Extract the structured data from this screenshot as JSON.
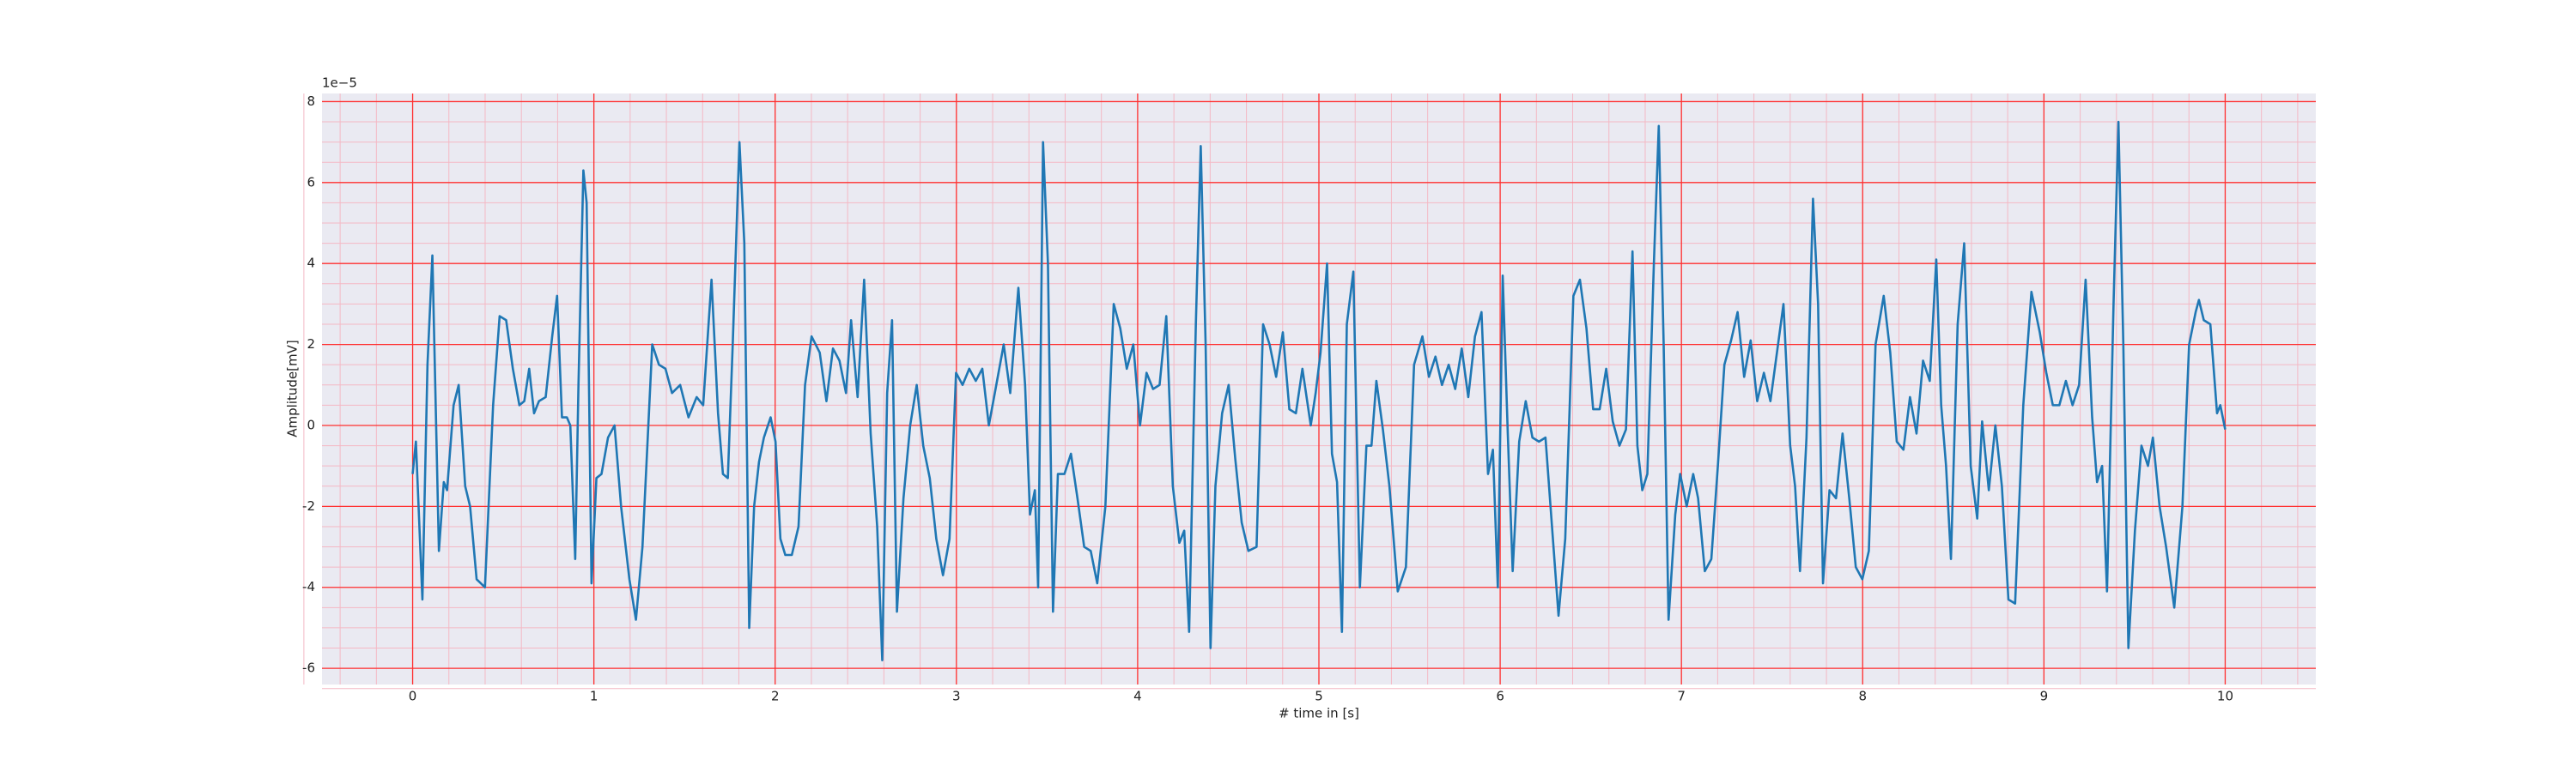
{
  "chart_data": {
    "type": "line",
    "xlabel": "# time in [s]",
    "ylabel": "Amplitude[mV]",
    "offset_label": "1e−5",
    "color": "#1f77b4",
    "grid": true,
    "minor_grid": true,
    "xlim": [
      -0.5,
      10.5
    ],
    "ylim": [
      -6.4,
      8.2
    ],
    "xticks": [
      0,
      1,
      2,
      3,
      4,
      5,
      6,
      7,
      8,
      9,
      10
    ],
    "yticks": [
      -6,
      -4,
      -2,
      0,
      2,
      4,
      6,
      8
    ],
    "x": [
      0,
      0.018,
      0.054,
      0.082,
      0.109,
      0.145,
      0.172,
      0.19,
      0.226,
      0.254,
      0.29,
      0.317,
      0.353,
      0.399,
      0.444,
      0.48,
      0.516,
      0.553,
      0.589,
      0.616,
      0.643,
      0.67,
      0.697,
      0.734,
      0.77,
      0.797,
      0.824,
      0.851,
      0.87,
      0.897,
      0.915,
      0.942,
      0.96,
      0.987,
      1.014,
      1.042,
      1.078,
      1.114,
      1.15,
      1.196,
      1.232,
      1.268,
      1.322,
      1.359,
      1.395,
      1.431,
      1.476,
      1.522,
      1.567,
      1.603,
      1.649,
      1.685,
      1.712,
      1.739,
      1.766,
      1.803,
      1.83,
      1.857,
      1.884,
      1.911,
      1.938,
      1.975,
      2.002,
      2.029,
      2.056,
      2.092,
      2.129,
      2.165,
      2.201,
      2.246,
      2.283,
      2.319,
      2.355,
      2.391,
      2.419,
      2.455,
      2.491,
      2.527,
      2.563,
      2.591,
      2.618,
      2.645,
      2.672,
      2.708,
      2.745,
      2.781,
      2.817,
      2.853,
      2.889,
      2.926,
      2.962,
      2.998,
      3.034,
      3.071,
      3.107,
      3.143,
      3.179,
      3.216,
      3.261,
      3.297,
      3.342,
      3.379,
      3.406,
      3.433,
      3.451,
      3.478,
      3.505,
      3.533,
      3.56,
      3.596,
      3.632,
      3.668,
      3.705,
      3.741,
      3.777,
      3.822,
      3.868,
      3.904,
      3.94,
      3.976,
      4.013,
      4.049,
      4.085,
      4.121,
      4.158,
      4.194,
      4.23,
      4.257,
      4.284,
      4.321,
      4.348,
      4.375,
      4.402,
      4.429,
      4.466,
      4.502,
      4.538,
      4.574,
      4.611,
      4.656,
      4.692,
      4.728,
      4.764,
      4.801,
      4.837,
      4.873,
      4.909,
      4.955,
      4.982,
      5.009,
      5.045,
      5.072,
      5.1,
      5.127,
      5.154,
      5.19,
      5.226,
      5.262,
      5.29,
      5.317,
      5.353,
      5.389,
      5.435,
      5.48,
      5.525,
      5.571,
      5.607,
      5.643,
      5.679,
      5.716,
      5.752,
      5.788,
      5.824,
      5.861,
      5.897,
      5.933,
      5.96,
      5.987,
      6.014,
      6.042,
      6.069,
      6.105,
      6.141,
      6.178,
      6.214,
      6.25,
      6.286,
      6.322,
      6.359,
      6.404,
      6.44,
      6.476,
      6.513,
      6.549,
      6.585,
      6.621,
      6.658,
      6.694,
      6.73,
      6.757,
      6.784,
      6.812,
      6.848,
      6.875,
      6.902,
      6.929,
      6.966,
      6.993,
      7.029,
      7.065,
      7.092,
      7.129,
      7.165,
      7.201,
      7.237,
      7.274,
      7.31,
      7.346,
      7.382,
      7.418,
      7.455,
      7.491,
      7.527,
      7.563,
      7.6,
      7.627,
      7.654,
      7.69,
      7.726,
      7.754,
      7.781,
      7.817,
      7.853,
      7.889,
      7.926,
      7.962,
      7.998,
      8.034,
      8.071,
      8.116,
      8.152,
      8.188,
      8.225,
      8.261,
      8.297,
      8.333,
      8.37,
      8.406,
      8.433,
      8.46,
      8.487,
      8.524,
      8.56,
      8.596,
      8.632,
      8.659,
      8.696,
      8.732,
      8.768,
      8.804,
      8.841,
      8.886,
      8.931,
      8.977,
      9.013,
      9.049,
      9.085,
      9.121,
      9.158,
      9.194,
      9.23,
      9.266,
      9.293,
      9.321,
      9.348,
      9.384,
      9.411,
      9.438,
      9.466,
      9.502,
      9.538,
      9.574,
      9.601,
      9.638,
      9.674,
      9.719,
      9.764,
      9.801,
      9.837,
      9.855,
      9.882,
      9.918,
      9.955,
      9.973,
      10.0
    ],
    "values": [
      -1.2,
      -0.4,
      -4.3,
      1.5,
      4.2,
      -3.1,
      -1.4,
      -1.6,
      0.5,
      1.0,
      -1.5,
      -2.0,
      -3.8,
      -4.0,
      0.5,
      2.7,
      2.6,
      1.4,
      0.5,
      0.6,
      1.4,
      0.3,
      0.6,
      0.7,
      2.2,
      3.2,
      0.2,
      0.2,
      0.0,
      -3.3,
      1.0,
      6.3,
      5.5,
      -3.9,
      -1.3,
      -1.2,
      -0.3,
      0.0,
      -2.0,
      -3.8,
      -4.8,
      -3.0,
      2.0,
      1.5,
      1.4,
      0.8,
      1.0,
      0.2,
      0.7,
      0.5,
      3.6,
      0.3,
      -1.2,
      -1.3,
      2.0,
      7.0,
      4.5,
      -5.0,
      -2.0,
      -0.9,
      -0.3,
      0.2,
      -0.4,
      -2.8,
      -3.2,
      -3.2,
      -2.5,
      1.0,
      2.2,
      1.8,
      0.6,
      1.9,
      1.6,
      0.8,
      2.6,
      0.7,
      3.6,
      -0.2,
      -2.5,
      -5.8,
      0.8,
      2.6,
      -4.6,
      -1.8,
      0.0,
      1.0,
      -0.5,
      -1.3,
      -2.8,
      -3.7,
      -2.8,
      1.3,
      1.0,
      1.4,
      1.1,
      1.4,
      0.0,
      0.9,
      2.0,
      0.8,
      3.4,
      1.0,
      -2.2,
      -1.6,
      -4.0,
      7.0,
      4.0,
      -4.6,
      -1.2,
      -1.2,
      -0.7,
      -1.8,
      -3.0,
      -3.1,
      -3.9,
      -2.0,
      3.0,
      2.4,
      1.4,
      2.0,
      0.0,
      1.3,
      0.9,
      1.0,
      2.7,
      -1.5,
      -2.9,
      -2.6,
      -5.1,
      2.5,
      6.9,
      2.0,
      -5.5,
      -1.5,
      0.3,
      1.0,
      -0.8,
      -2.4,
      -3.1,
      -3.0,
      2.5,
      2.0,
      1.2,
      2.3,
      0.4,
      0.3,
      1.4,
      0.0,
      0.8,
      1.8,
      4.0,
      -0.7,
      -1.4,
      -5.1,
      2.5,
      3.8,
      -4.0,
      -0.5,
      -0.5,
      1.1,
      -0.1,
      -1.5,
      -4.1,
      -3.5,
      1.5,
      2.2,
      1.2,
      1.7,
      1.0,
      1.5,
      0.9,
      1.9,
      0.7,
      2.2,
      2.8,
      -1.2,
      -0.6,
      -4.0,
      3.7,
      -0.2,
      -3.6,
      -0.4,
      0.6,
      -0.3,
      -0.4,
      -0.3,
      -2.5,
      -4.7,
      -2.8,
      3.2,
      3.6,
      2.4,
      0.4,
      0.4,
      1.4,
      0.1,
      -0.5,
      -0.1,
      4.3,
      -0.5,
      -1.6,
      -1.2,
      4.0,
      7.4,
      2.0,
      -4.8,
      -2.2,
      -1.2,
      -2.0,
      -1.2,
      -1.8,
      -3.6,
      -3.3,
      -1.0,
      1.5,
      2.1,
      2.8,
      1.2,
      2.1,
      0.6,
      1.3,
      0.6,
      1.8,
      3.0,
      -0.5,
      -1.5,
      -3.6,
      -0.3,
      5.6,
      3.0,
      -3.9,
      -1.6,
      -1.8,
      -0.2,
      -1.8,
      -3.5,
      -3.8,
      -3.1,
      2.0,
      3.2,
      1.8,
      -0.4,
      -0.6,
      0.7,
      -0.2,
      1.6,
      1.1,
      4.1,
      0.5,
      -1.0,
      -3.3,
      2.5,
      4.5,
      -1.0,
      -2.3,
      0.1,
      -1.6,
      0.0,
      -1.5,
      -4.3,
      -4.4,
      0.5,
      3.3,
      2.3,
      1.3,
      0.5,
      0.5,
      1.1,
      0.5,
      1.0,
      3.6,
      0.2,
      -1.4,
      -1.0,
      -4.1,
      3.0,
      7.5,
      2.0,
      -5.5,
      -2.6,
      -0.5,
      -1.0,
      -0.3,
      -2.0,
      -3.0,
      -4.5,
      -2.0,
      2.0,
      2.8,
      3.1,
      2.6,
      2.5,
      0.3,
      0.5,
      -0.1
    ]
  }
}
